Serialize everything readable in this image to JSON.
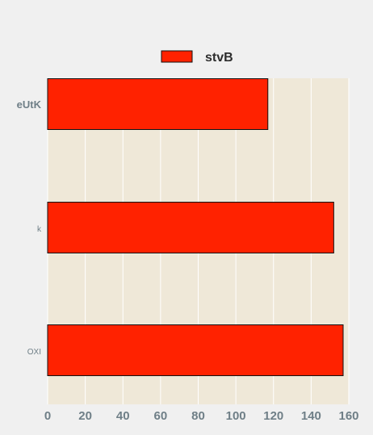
{
  "chart_data": {
    "type": "bar",
    "orientation": "horizontal",
    "categories": [
      "eUtK",
      "k",
      "OXI"
    ],
    "series": [
      {
        "name": "stvB",
        "values": [
          117,
          152,
          157
        ],
        "color": "#ff2200"
      }
    ],
    "xlim": [
      0,
      160
    ],
    "xticks": [
      0,
      20,
      40,
      60,
      80,
      100,
      120,
      140,
      160
    ],
    "grid": true,
    "legend": {
      "position": "top-center"
    },
    "colors": {
      "page_background": "#f0f0f0",
      "plot_background": "#efe8d8",
      "grid": "#ffffff",
      "tick_text": "#6f7f87",
      "legend_text": "#2d2d2d",
      "bar_edge": "#111111"
    }
  }
}
